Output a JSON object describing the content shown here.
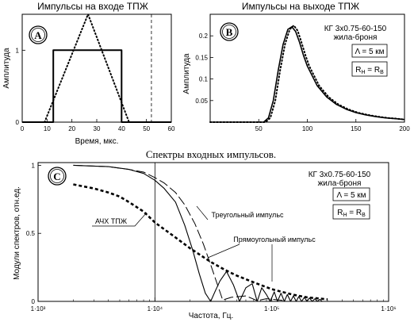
{
  "chart_data": [
    {
      "id": "A",
      "type": "line",
      "panel_label": "A",
      "title": "Импульсы на входе ТПЖ",
      "xlabel": "Время, мкс.",
      "ylabel": "Амплитуда",
      "xlim": [
        0,
        60
      ],
      "ylim": [
        0,
        1.5
      ],
      "xticks": [
        0,
        10,
        20,
        30,
        40,
        50,
        60
      ],
      "yticks": [
        0,
        1
      ],
      "series": [
        {
          "style": "solid",
          "x": [
            0,
            12.5,
            12.5,
            40,
            40,
            60
          ],
          "y": [
            0,
            0,
            1,
            1,
            0,
            0
          ]
        },
        {
          "style": "dotted",
          "x": [
            9,
            26.5,
            43
          ],
          "y": [
            0,
            1.5,
            0
          ]
        }
      ],
      "vline": {
        "x": 52,
        "style": "dashed"
      }
    },
    {
      "id": "B",
      "type": "line",
      "panel_label": "B",
      "title": "Импульсы на выходе ТПЖ",
      "ylabel": "Амплитуда",
      "xlim": [
        0,
        200
      ],
      "ylim": [
        0,
        0.25
      ],
      "xticks": [
        50,
        100,
        150,
        200
      ],
      "yticks": [
        0.05,
        0.1,
        0.15,
        0.2
      ],
      "annotations": [
        "КГ 3x0.75-60-150",
        "жила-броня",
        "Λ = 5 км",
        "R<sub>Н</sub> = R<sub>В</sub>"
      ],
      "series": [
        {
          "style": "solid",
          "x": [
            0,
            55,
            60,
            65,
            70,
            75,
            80,
            84,
            88,
            92,
            96,
            100,
            110,
            120,
            130,
            140,
            150,
            160,
            170,
            180,
            190,
            200
          ],
          "y": [
            0,
            0,
            0.01,
            0.05,
            0.12,
            0.18,
            0.215,
            0.221,
            0.21,
            0.185,
            0.155,
            0.13,
            0.085,
            0.058,
            0.041,
            0.03,
            0.022,
            0.017,
            0.013,
            0.01,
            0.008,
            0.006
          ]
        },
        {
          "style": "dotted",
          "x": [
            0,
            57,
            62,
            67,
            72,
            77,
            82,
            86,
            90,
            94,
            98,
            102,
            112,
            122,
            132,
            142,
            152,
            162,
            172,
            182,
            192,
            200
          ],
          "y": [
            0,
            0,
            0.01,
            0.05,
            0.12,
            0.18,
            0.215,
            0.224,
            0.212,
            0.185,
            0.155,
            0.13,
            0.085,
            0.058,
            0.041,
            0.03,
            0.022,
            0.017,
            0.013,
            0.01,
            0.008,
            0.006
          ]
        }
      ]
    },
    {
      "id": "C",
      "type": "line",
      "panel_label": "C",
      "title": "Спектры входных импульсов.",
      "xlabel": "Частота, Гц.",
      "ylabel": "Модули спектров, отн.ед.",
      "xscale": "log",
      "xlim": [
        1000,
        1000000
      ],
      "ylim": [
        0,
        1.02
      ],
      "xtick_labels": [
        "1·10³",
        "1·10⁴",
        "1·10⁵",
        "1·10⁶"
      ],
      "yticks": [
        0,
        0.5,
        1
      ],
      "vline": {
        "x": 10000
      },
      "annotations": [
        "КГ 3x0.75-60-150",
        "жила-броня",
        "Λ = 5 км",
        "R<sub>Н</sub> = R<sub>В</sub>"
      ],
      "labels": [
        "Треугольный импульс",
        "Прямоугольный импульс",
        "АЧХ ТПЖ"
      ],
      "series": [
        {
          "name": "АЧХ ТПЖ",
          "style": "dashed-bold",
          "x": [
            2000,
            3000,
            4000,
            5000,
            6000,
            8000,
            10000,
            15000,
            20000,
            30000,
            40000,
            50000,
            70000,
            100000,
            150000,
            200000,
            300000
          ],
          "y": [
            0.86,
            0.83,
            0.8,
            0.77,
            0.73,
            0.66,
            0.58,
            0.47,
            0.39,
            0.29,
            0.23,
            0.19,
            0.14,
            0.09,
            0.05,
            0.03,
            0.015
          ]
        },
        {
          "name": "Треугольный импульс",
          "style": "long-dash",
          "x": [
            2000,
            4000,
            6000,
            8000,
            10000,
            12000,
            15000,
            18000,
            22000,
            26000,
            30000,
            35000,
            38000,
            45000,
            60000,
            75000,
            90000,
            130000
          ],
          "y": [
            1.0,
            0.99,
            0.97,
            0.95,
            0.91,
            0.87,
            0.8,
            0.71,
            0.57,
            0.42,
            0.27,
            0.1,
            0.01,
            0.03,
            0.04,
            0.005,
            0.02,
            0.005
          ]
        },
        {
          "name": "Прямоугольный импульс",
          "style": "solid",
          "x": [
            2000,
            4000,
            6000,
            8000,
            10000,
            12000,
            15000,
            18000,
            21000,
            24000,
            27000,
            30000,
            33000,
            36000,
            41000,
            47000,
            53000,
            60000,
            68000,
            75000,
            82000,
            90000,
            97000,
            105000,
            112000,
            120000,
            128000,
            136000,
            145000,
            153000,
            162000,
            170000,
            180000,
            190000,
            200000,
            210000,
            222000,
            234000,
            245000,
            258000,
            270000
          ],
          "y": [
            1.0,
            0.99,
            0.97,
            0.94,
            0.89,
            0.83,
            0.73,
            0.56,
            0.38,
            0.2,
            0.06,
            0.0,
            0.08,
            0.15,
            0.22,
            0.12,
            0.0,
            0.1,
            0.13,
            0.0,
            0.1,
            0.05,
            0.0,
            0.07,
            0.0,
            0.06,
            0.0,
            0.05,
            0.0,
            0.04,
            0.0,
            0.035,
            0.0,
            0.03,
            0.0,
            0.025,
            0.0,
            0.02,
            0.0,
            0.015,
            0.0
          ]
        }
      ]
    }
  ]
}
